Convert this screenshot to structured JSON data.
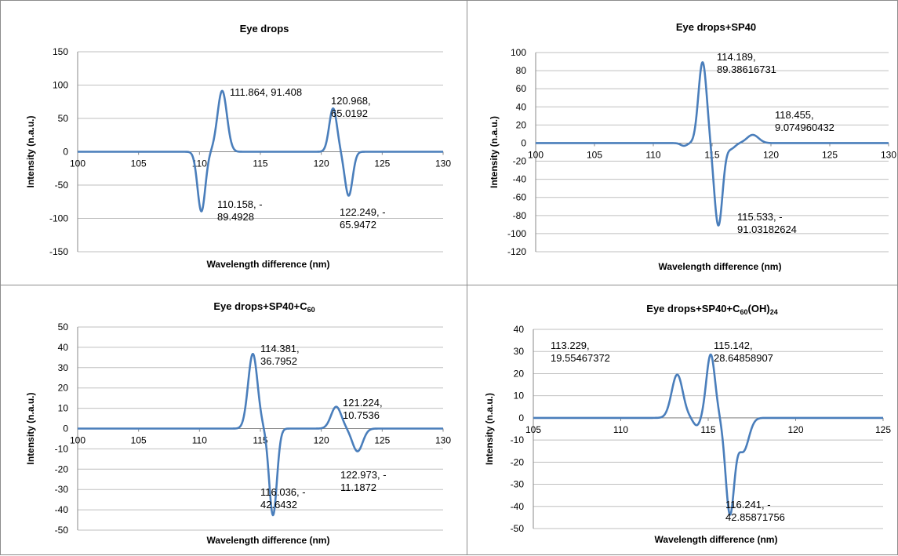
{
  "colors": {
    "series": "#4a7ebb",
    "grid": "#bfbfbf",
    "axis": "#888888"
  },
  "chart_data": [
    {
      "type": "line",
      "title": {
        "main": "Eye drops",
        "sub": "",
        "tail": ""
      },
      "xlabel": "Wavelength difference (nm)",
      "ylabel": "Intensity (n.a.u.)",
      "xlim": [
        100,
        130
      ],
      "ylim": [
        -150,
        150
      ],
      "xticks": [
        "100",
        "105",
        "110",
        "115",
        "120",
        "125",
        "130"
      ],
      "yticks": [
        "-150",
        "-100",
        "-50",
        "0",
        "50",
        "100",
        "150"
      ],
      "grid": "horizontal",
      "peaks": [
        {
          "x": 111.864,
          "y": 91.408,
          "w": 0.55
        },
        {
          "x": 110.158,
          "y": -89.4928,
          "w": 0.45
        },
        {
          "x": 120.968,
          "y": 65.0192,
          "w": 0.45
        },
        {
          "x": 122.249,
          "y": -65.9472,
          "w": 0.45
        }
      ],
      "data_labels": [
        {
          "lines": [
            "111.864, 91.408"
          ],
          "x": 111.864,
          "y": 91.408
        },
        {
          "lines": [
            "110.158, -",
            "89.4928"
          ],
          "x": 110.158,
          "y": -89.4928
        },
        {
          "lines": [
            "120.968,",
            "65.0192"
          ],
          "x": 120.968,
          "y": 65.0192
        },
        {
          "lines": [
            "122.249, -",
            "65.9472"
          ],
          "x": 122.249,
          "y": -65.9472
        }
      ]
    },
    {
      "type": "line",
      "title": {
        "main": "Eye drops+SP40",
        "sub": "",
        "tail": ""
      },
      "xlabel": "Wavelength difference (nm)",
      "ylabel": "Intensity (n.a.u.)",
      "xlim": [
        100,
        130
      ],
      "ylim": [
        -120,
        100
      ],
      "xticks": [
        "100",
        "105",
        "110",
        "115",
        "120",
        "125",
        "130"
      ],
      "yticks": [
        "-120",
        "-100",
        "-80",
        "-60",
        "-40",
        "-20",
        "0",
        "20",
        "40",
        "60",
        "80",
        "100"
      ],
      "grid": "horizontal",
      "peaks": [
        {
          "x": 114.189,
          "y": 89.38616731,
          "w": 0.5
        },
        {
          "x": 115.533,
          "y": -91.03182624,
          "w": 0.5
        },
        {
          "x": 118.455,
          "y": 9.074960432,
          "w": 0.7
        },
        {
          "x": 116.6,
          "y": -6,
          "w": 0.5
        },
        {
          "x": 112.6,
          "y": -3,
          "w": 0.4
        }
      ],
      "data_labels": [
        {
          "lines": [
            "114.189,",
            "89.38616731"
          ],
          "x": 114.189,
          "y": 89.38616731
        },
        {
          "lines": [
            "118.455,",
            "9.074960432"
          ],
          "x": 118.455,
          "y": 9.074960432
        },
        {
          "lines": [
            "115.533, -",
            "91.03182624"
          ],
          "x": 115.533,
          "y": -91.03182624
        }
      ]
    },
    {
      "type": "line",
      "title": {
        "main": "Eye drops+SP40+C",
        "sub": "60",
        "tail": ""
      },
      "xlabel": "Wavelength difference (nm)",
      "ylabel": "Intensity (n.a.u.)",
      "xlim": [
        100,
        130
      ],
      "ylim": [
        -50,
        50
      ],
      "xticks": [
        "100",
        "105",
        "110",
        "115",
        "120",
        "125",
        "130"
      ],
      "yticks": [
        "-50",
        "-40",
        "-30",
        "-20",
        "-10",
        "0",
        "10",
        "20",
        "30",
        "40",
        "50"
      ],
      "grid": "horizontal",
      "peaks": [
        {
          "x": 114.381,
          "y": 36.7952,
          "w": 0.55
        },
        {
          "x": 116.036,
          "y": -42.6432,
          "w": 0.45
        },
        {
          "x": 121.224,
          "y": 10.7536,
          "w": 0.6
        },
        {
          "x": 122.973,
          "y": -11.1872,
          "w": 0.6
        }
      ],
      "data_labels": [
        {
          "lines": [
            "114.381,",
            "36.7952"
          ],
          "x": 114.381,
          "y": 36.7952
        },
        {
          "lines": [
            "121.224,",
            "10.7536"
          ],
          "x": 121.224,
          "y": 10.7536
        },
        {
          "lines": [
            "116.036, -",
            "42.6432"
          ],
          "x": 116.036,
          "y": -42.6432
        },
        {
          "lines": [
            "122.973, -",
            "11.1872"
          ],
          "x": 122.973,
          "y": -11.1872
        }
      ]
    },
    {
      "type": "line",
      "title": {
        "main": "Eye drops+SP40+C",
        "sub": "60",
        "tail": "(OH)",
        "sub2": "24"
      },
      "xlabel": "Wavelength difference (nm)",
      "ylabel": "Intensity (n.a.u.)",
      "xlim": [
        105,
        125
      ],
      "ylim": [
        -50,
        40
      ],
      "xticks": [
        "105",
        "110",
        "115",
        "120",
        "125"
      ],
      "yticks": [
        "-50",
        "-40",
        "-30",
        "-20",
        "-10",
        "0",
        "10",
        "20",
        "30",
        "40"
      ],
      "grid": "horizontal",
      "peaks": [
        {
          "x": 113.229,
          "y": 19.55467372,
          "w": 0.45
        },
        {
          "x": 114.35,
          "y": -3.5,
          "w": 0.3
        },
        {
          "x": 115.142,
          "y": 28.64858907,
          "w": 0.35
        },
        {
          "x": 116.241,
          "y": -42.85871756,
          "w": 0.35
        },
        {
          "x": 117.0,
          "y": -15,
          "w": 0.45
        }
      ],
      "data_labels": [
        {
          "lines": [
            "113.229,",
            "19.55467372"
          ],
          "x": 113.229,
          "y": 19.55467372
        },
        {
          "lines": [
            "115.142,",
            "28.64858907"
          ],
          "x": 115.142,
          "y": 28.64858907
        },
        {
          "lines": [
            "116.241, -",
            "42.85871756"
          ],
          "x": 116.241,
          "y": -42.85871756
        }
      ]
    }
  ]
}
